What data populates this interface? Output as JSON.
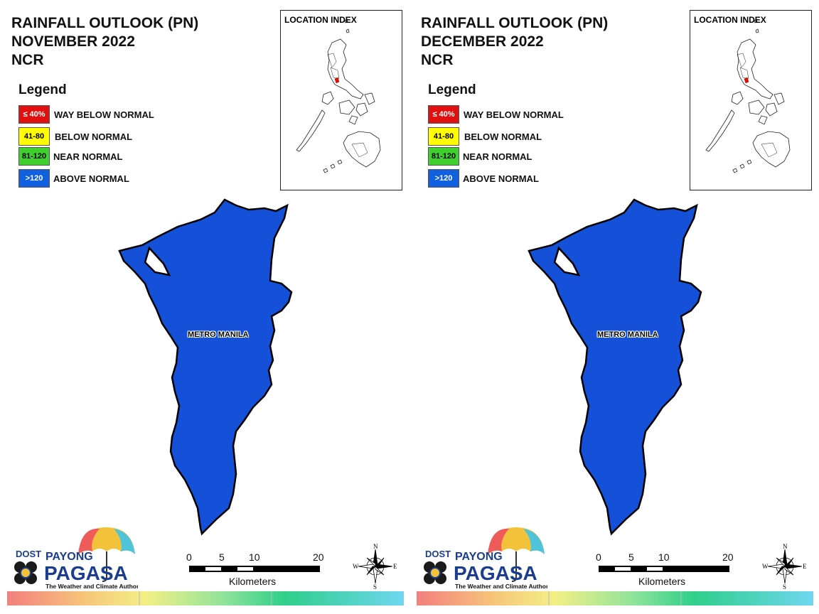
{
  "panels": [
    {
      "title_line1": "RAINFALL OUTLOOK (PN)",
      "title_line2": "NOVEMBER 2022",
      "title_line3": "NCR",
      "legend_title": "Legend",
      "legend": [
        {
          "range": "≤ 40%",
          "label": "WAY BELOW NORMAL",
          "color": "#e01010",
          "text_color": "#ffffff"
        },
        {
          "range": "41-80",
          "label": "BELOW NORMAL",
          "color": "#ffff00",
          "text_color": "#000000"
        },
        {
          "range": "81-120",
          "label": "NEAR NORMAL",
          "color": "#3fcf2f",
          "text_color": "#000000"
        },
        {
          "range": ">120",
          "label": "ABOVE NORMAL",
          "color": "#1060e0",
          "text_color": "#ffffff"
        }
      ],
      "location_index_title": "LOCATION INDEX",
      "region_label": "METRO MANILA",
      "region_color": "#1550d8",
      "scale_ticks": [
        "0",
        "5",
        "10",
        "20"
      ],
      "scale_unit": "Kilometers",
      "logo": {
        "dost": "DOST",
        "payong": "PAYONG",
        "pagasa": "PAGASA",
        "tagline": "The Weather and Climate Authority"
      },
      "compass": {
        "n": "N",
        "s": "S",
        "e": "E",
        "w": "W"
      }
    },
    {
      "title_line1": "RAINFALL OUTLOOK (PN)",
      "title_line2": "DECEMBER 2022",
      "title_line3": "NCR",
      "legend_title": "Legend",
      "legend": [
        {
          "range": "≤ 40%",
          "label": "WAY BELOW NORMAL",
          "color": "#e01010",
          "text_color": "#ffffff"
        },
        {
          "range": "41-80",
          "label": "BELOW NORMAL",
          "color": "#ffff00",
          "text_color": "#000000"
        },
        {
          "range": "81-120",
          "label": "NEAR NORMAL",
          "color": "#3fcf2f",
          "text_color": "#000000"
        },
        {
          "range": ">120",
          "label": "ABOVE NORMAL",
          "color": "#1060e0",
          "text_color": "#ffffff"
        }
      ],
      "location_index_title": "LOCATION INDEX",
      "region_label": "METRO MANILA",
      "region_color": "#1550d8",
      "scale_ticks": [
        "0",
        "5",
        "10",
        "20"
      ],
      "scale_unit": "Kilometers",
      "logo": {
        "dost": "DOST",
        "payong": "PAYONG",
        "pagasa": "PAGASA",
        "tagline": "The Weather and Climate Authority"
      },
      "compass": {
        "n": "N",
        "s": "S",
        "e": "E",
        "w": "W"
      }
    }
  ]
}
